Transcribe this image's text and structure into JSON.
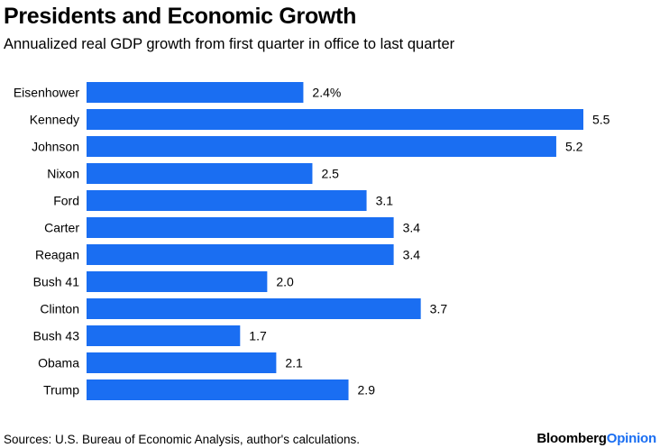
{
  "header": {
    "title": "Presidents and Economic Growth",
    "subtitle": "Annualized real GDP growth from first quarter in office to last quarter"
  },
  "footer": {
    "source": "Sources: U.S. Bureau of Economic Analysis, author's calculations.",
    "brand_part1": "Bloomberg",
    "brand_part2": "Opinion"
  },
  "colors": {
    "bar": "#1a6ef2",
    "brand_accent": "#1a6ef2"
  },
  "chart_data": {
    "type": "bar",
    "orientation": "horizontal",
    "title": "Presidents and Economic Growth",
    "subtitle": "Annualized real GDP growth from first quarter in office to last quarter",
    "categories": [
      "Eisenhower",
      "Kennedy",
      "Johnson",
      "Nixon",
      "Ford",
      "Carter",
      "Reagan",
      "Bush 41",
      "Clinton",
      "Bush 43",
      "Obama",
      "Trump"
    ],
    "values": [
      2.4,
      5.5,
      5.2,
      2.5,
      3.1,
      3.4,
      3.4,
      2.0,
      3.7,
      1.7,
      2.1,
      2.9
    ],
    "value_labels": [
      "2.4%",
      "5.5",
      "5.2",
      "2.5",
      "3.1",
      "3.4",
      "3.4",
      "2.0",
      "3.7",
      "1.7",
      "2.1",
      "2.9"
    ],
    "xlim": [
      0,
      5.5
    ],
    "grid": false,
    "legend": "none"
  }
}
